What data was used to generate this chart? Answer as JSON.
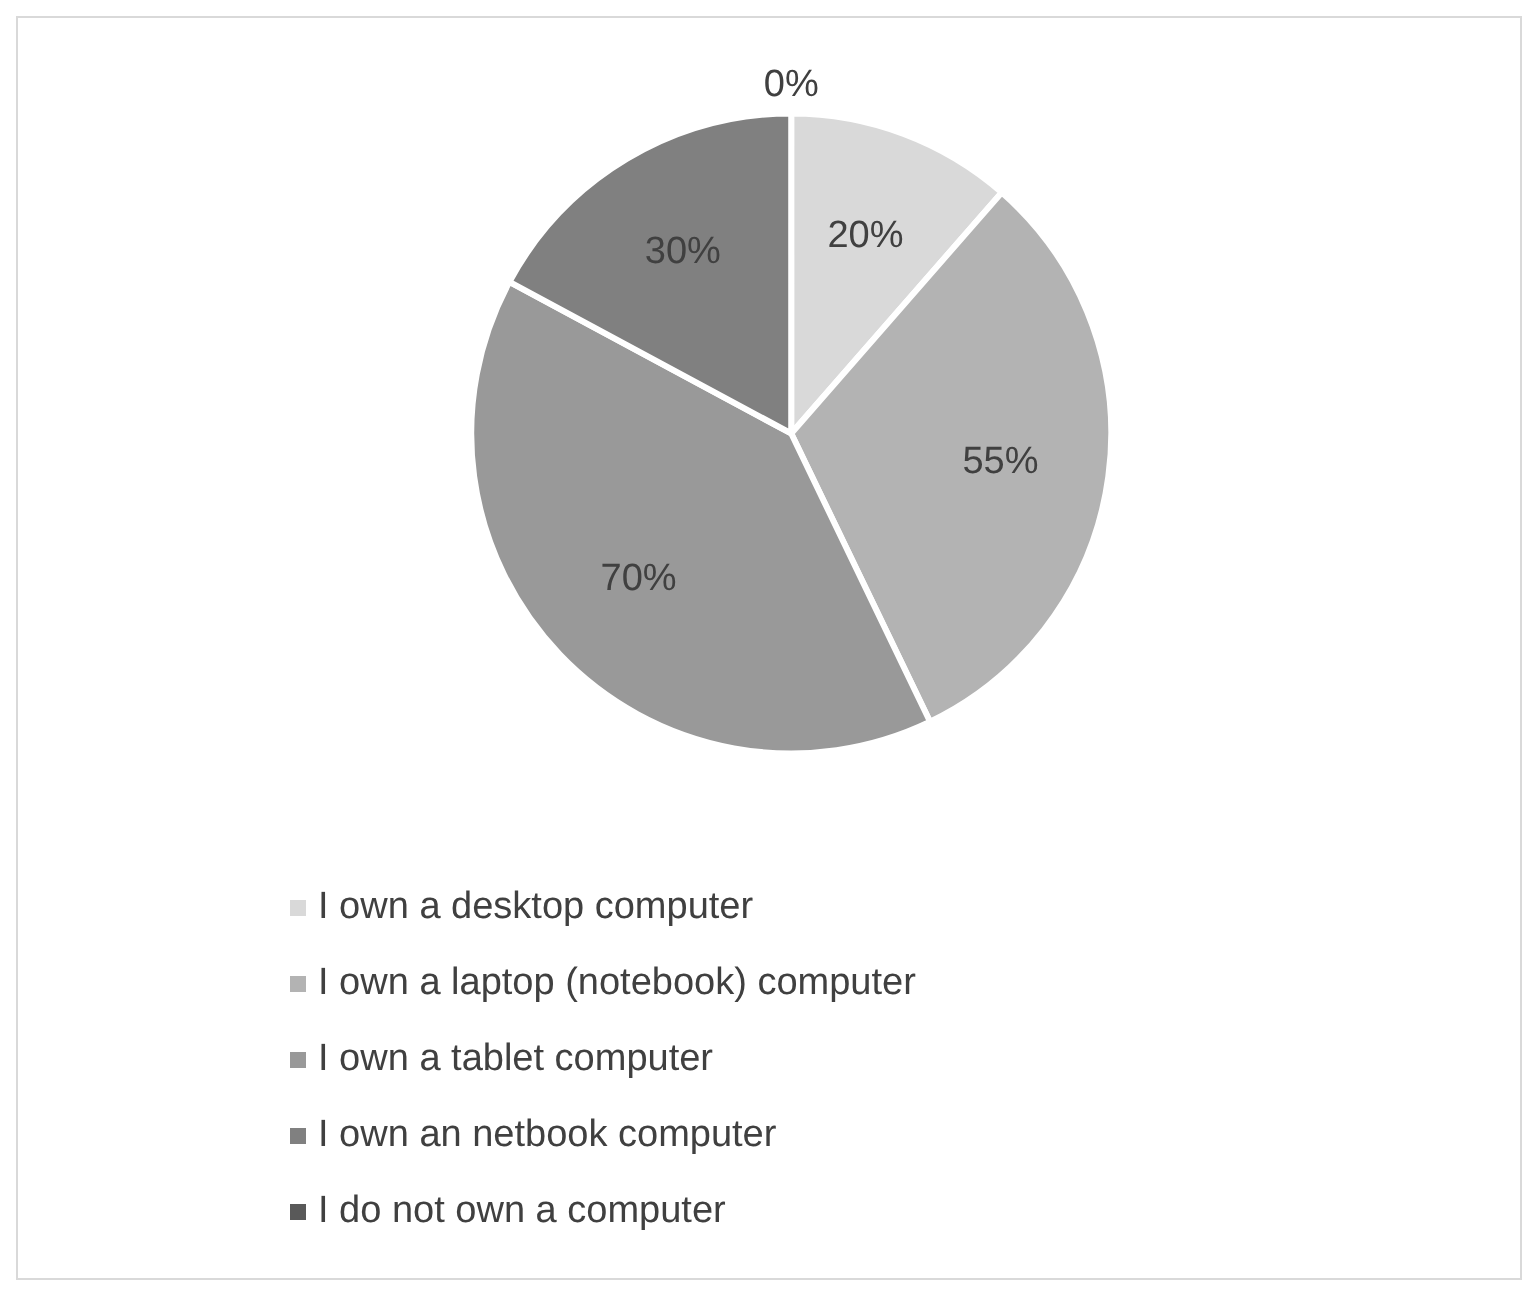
{
  "chart_data": {
    "type": "pie",
    "categories": [
      "I own a desktop computer",
      "I own a laptop (notebook) computer",
      "I own a tablet computer",
      "I own an netbook computer",
      "I do not own a computer"
    ],
    "values": [
      20,
      55,
      70,
      30,
      0
    ],
    "value_labels": [
      "20%",
      "55%",
      "70%",
      "30%",
      "0%"
    ],
    "colors": [
      "#d9d9d9",
      "#b3b3b3",
      "#999999",
      "#808080",
      "#595959"
    ],
    "legend": "bottom"
  }
}
